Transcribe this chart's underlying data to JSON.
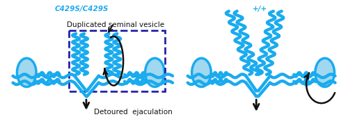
{
  "bg_color": "#ffffff",
  "blue_dark": "#1aabee",
  "blue_light": "#a0d8f0",
  "dashed_box_color": "#2222aa",
  "arrow_color": "#111111",
  "text_color": "#111111",
  "label_color": "#22aaee",
  "title_left": "C429S/C429S",
  "title_right": "+/+",
  "label_duplicated": "Duplicated seminal vesicle",
  "label_detoured": "Detoured  ejaculation",
  "figsize": [
    5.0,
    1.85
  ],
  "dpi": 100
}
